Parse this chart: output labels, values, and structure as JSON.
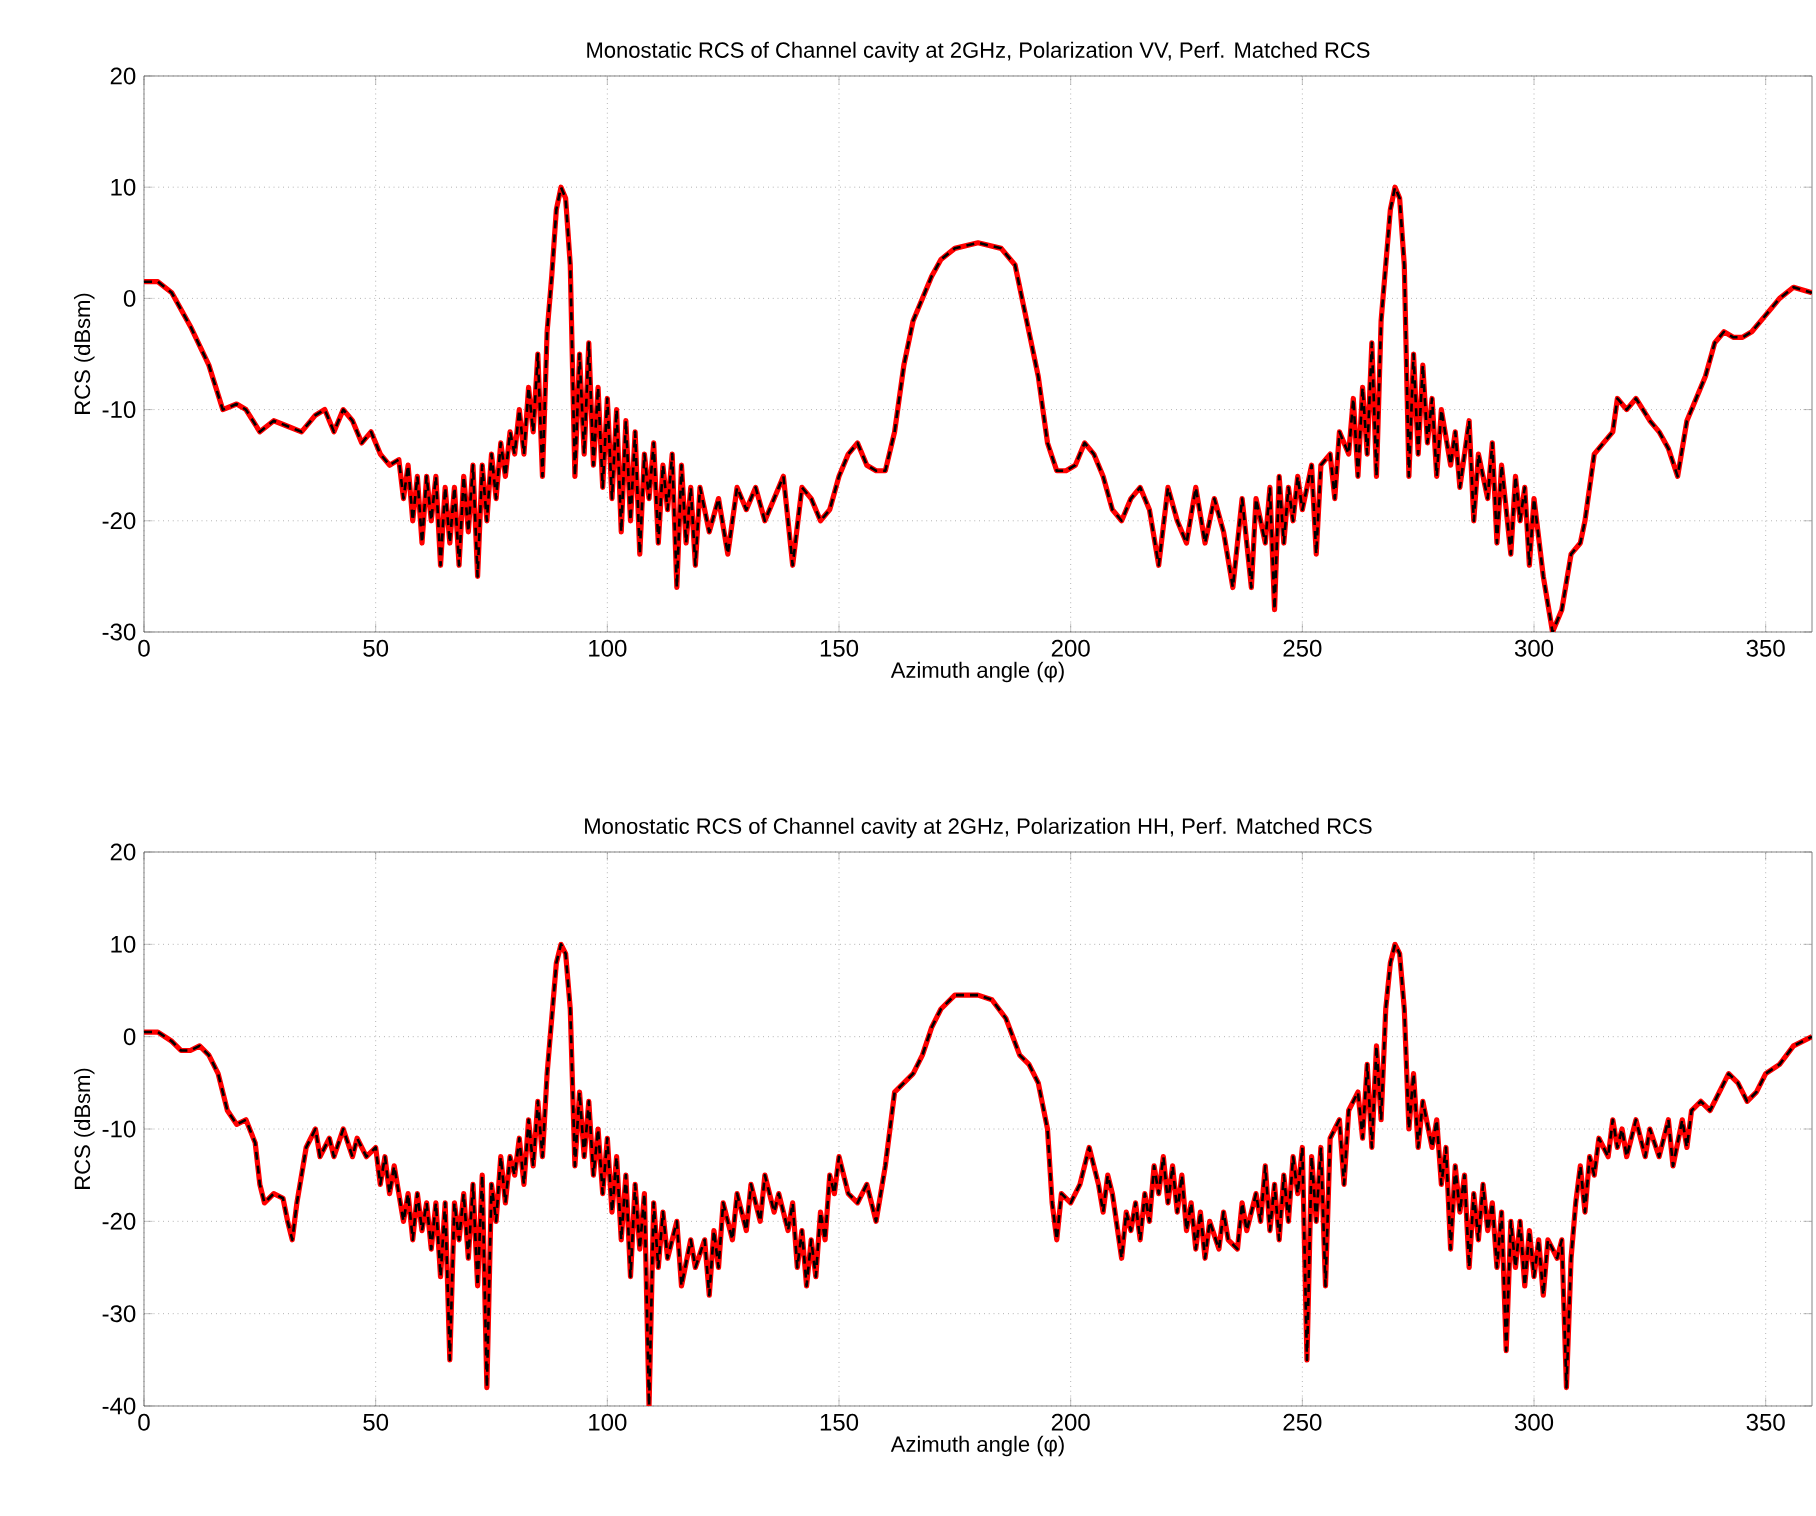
{
  "chart_data": [
    {
      "type": "line",
      "title": "Monostatic RCS of Channel cavity at 2GHz, Polarization VV, Perf. Matched RCS",
      "xlabel": "Azimuth angle (φ)",
      "ylabel": "RCS (dBsm)",
      "xlim": [
        0,
        360
      ],
      "ylim": [
        -30,
        20
      ],
      "xticks": [
        0,
        50,
        100,
        150,
        200,
        250,
        300,
        350
      ],
      "yticks": [
        -30,
        -20,
        -10,
        0,
        10,
        20
      ],
      "grid": true,
      "x": [
        0,
        3,
        6,
        10,
        14,
        17,
        20,
        22,
        25,
        28,
        31,
        34,
        37,
        39,
        41,
        43,
        45,
        47,
        49,
        51,
        53,
        55,
        56,
        57,
        58,
        59,
        60,
        61,
        62,
        63,
        64,
        65,
        66,
        67,
        68,
        69,
        70,
        71,
        72,
        73,
        74,
        75,
        76,
        77,
        78,
        79,
        80,
        81,
        82,
        83,
        84,
        85,
        86,
        87,
        88,
        89,
        90,
        91,
        92,
        93,
        94,
        95,
        96,
        97,
        98,
        99,
        100,
        101,
        102,
        103,
        104,
        105,
        106,
        107,
        108,
        109,
        110,
        111,
        112,
        113,
        114,
        115,
        116,
        117,
        118,
        119,
        120,
        122,
        124,
        126,
        128,
        130,
        132,
        134,
        136,
        138,
        140,
        142,
        144,
        146,
        148,
        150,
        152,
        154,
        156,
        158,
        160,
        162,
        164,
        166,
        168,
        170,
        172,
        175,
        180,
        185,
        188,
        190,
        193,
        195,
        197,
        199,
        201,
        203,
        205,
        207,
        209,
        211,
        213,
        215,
        217,
        219,
        221,
        223,
        225,
        227,
        229,
        231,
        233,
        235,
        237,
        239,
        240,
        242,
        243,
        244,
        245,
        246,
        247,
        248,
        249,
        250,
        252,
        253,
        254,
        256,
        257,
        258,
        260,
        261,
        262,
        263,
        264,
        265,
        266,
        267,
        268,
        269,
        270,
        271,
        272,
        273,
        274,
        275,
        276,
        277,
        278,
        279,
        280,
        282,
        283,
        284,
        286,
        287,
        288,
        290,
        291,
        292,
        293,
        295,
        296,
        297,
        298,
        299,
        300,
        302,
        304,
        306,
        308,
        310,
        311,
        313,
        315,
        317,
        318,
        320,
        322,
        325,
        327,
        329,
        331,
        333,
        335,
        337,
        339,
        341,
        343,
        345,
        347,
        350,
        353,
        356,
        360
      ],
      "series": [
        {
          "color": "#ff0000",
          "line_style": "solid",
          "values": [
            1.5,
            1.5,
            0.5,
            -2.5,
            -6,
            -10,
            -9.5,
            -10,
            -12,
            -11,
            -11.5,
            -12,
            -10.5,
            -10,
            -12,
            -10,
            -11,
            -13,
            -12,
            -14,
            -15,
            -14.5,
            -18,
            -15,
            -20,
            -16,
            -22,
            -16,
            -20,
            -16,
            -24,
            -17,
            -22,
            -17,
            -24,
            -16,
            -21,
            -15,
            -25,
            -15,
            -20,
            -14,
            -18,
            -13,
            -16,
            -12,
            -14,
            -10,
            -14,
            -8,
            -12,
            -5,
            -16,
            -3,
            2,
            8,
            10,
            9,
            3,
            -16,
            -5,
            -14,
            -4,
            -15,
            -8,
            -17,
            -9,
            -18,
            -10,
            -21,
            -11,
            -20,
            -12,
            -23,
            -14,
            -18,
            -13,
            -22,
            -15,
            -19,
            -14,
            -26,
            -15,
            -22,
            -17,
            -24,
            -17,
            -21,
            -18,
            -23,
            -17,
            -19,
            -17,
            -20,
            -18,
            -16,
            -24,
            -17,
            -18,
            -20,
            -19,
            -16,
            -14,
            -13,
            -15,
            -15.5,
            -15.5,
            -12,
            -6,
            -2,
            0,
            2,
            3.5,
            4.5,
            5,
            4.5,
            3,
            -1,
            -7,
            -13,
            -15.5,
            -15.5,
            -15,
            -13,
            -14,
            -16,
            -19,
            -20,
            -18,
            -17,
            -19,
            -24,
            -17,
            -20,
            -22,
            -17,
            -22,
            -18,
            -21,
            -26,
            -18,
            -26,
            -18,
            -22,
            -17,
            -28,
            -16,
            -22,
            -17,
            -20,
            -16,
            -19,
            -15,
            -23,
            -15,
            -14,
            -18,
            -12,
            -14,
            -9,
            -16,
            -8,
            -14,
            -4,
            -16,
            -2,
            3,
            8,
            10,
            9,
            3,
            -16,
            -5,
            -14,
            -6,
            -13,
            -9,
            -16,
            -10,
            -15,
            -12,
            -17,
            -11,
            -20,
            -14,
            -18,
            -13,
            -22,
            -15,
            -23,
            -16,
            -20,
            -17,
            -24,
            -18,
            -25,
            -30,
            -28,
            -23,
            -22,
            -20,
            -14,
            -13,
            -12,
            -9,
            -10,
            -9,
            -11,
            -12,
            -13.5,
            -16,
            -11,
            -9,
            -7,
            -4,
            -3,
            -3.5,
            -3.5,
            -3,
            -1.5,
            0,
            1,
            0.5
          ]
        },
        {
          "color": "#000000",
          "line_style": "dashed",
          "values": [
            1.5,
            1.5,
            0.5,
            -2.5,
            -6,
            -10,
            -9.5,
            -10,
            -12,
            -11,
            -11.5,
            -12,
            -10.5,
            -10,
            -12,
            -10,
            -11,
            -13,
            -12,
            -14,
            -15,
            -14.5,
            -18,
            -15,
            -20,
            -16,
            -22,
            -16,
            -20,
            -16,
            -24,
            -17,
            -22,
            -17,
            -24,
            -16,
            -21,
            -15,
            -25,
            -15,
            -20,
            -14,
            -18,
            -13,
            -16,
            -12,
            -14,
            -10,
            -14,
            -8,
            -12,
            -5,
            -16,
            -3,
            2,
            8,
            10,
            9,
            3,
            -16,
            -5,
            -14,
            -4,
            -15,
            -8,
            -17,
            -9,
            -18,
            -10,
            -21,
            -11,
            -20,
            -12,
            -23,
            -14,
            -18,
            -13,
            -22,
            -15,
            -19,
            -14,
            -26,
            -15,
            -22,
            -17,
            -24,
            -17,
            -21,
            -18,
            -23,
            -17,
            -19,
            -17,
            -20,
            -18,
            -16,
            -24,
            -17,
            -18,
            -20,
            -19,
            -16,
            -14,
            -13,
            -15,
            -15.5,
            -15.5,
            -12,
            -6,
            -2,
            0,
            2,
            3.5,
            4.5,
            5,
            4.5,
            3,
            -1,
            -7,
            -13,
            -15.5,
            -15.5,
            -15,
            -13,
            -14,
            -16,
            -19,
            -20,
            -18,
            -17,
            -19,
            -24,
            -17,
            -20,
            -22,
            -17,
            -22,
            -18,
            -21,
            -26,
            -18,
            -26,
            -18,
            -22,
            -17,
            -28,
            -16,
            -22,
            -17,
            -20,
            -16,
            -19,
            -15,
            -23,
            -15,
            -14,
            -18,
            -12,
            -14,
            -9,
            -16,
            -8,
            -14,
            -4,
            -16,
            -2,
            3,
            8,
            10,
            9,
            3,
            -16,
            -5,
            -14,
            -6,
            -13,
            -9,
            -16,
            -10,
            -15,
            -12,
            -17,
            -11,
            -20,
            -14,
            -18,
            -13,
            -22,
            -15,
            -23,
            -16,
            -20,
            -17,
            -24,
            -18,
            -25,
            -30,
            -28,
            -23,
            -22,
            -20,
            -14,
            -13,
            -12,
            -9,
            -10,
            -9,
            -11,
            -12,
            -13.5,
            -16,
            -11,
            -9,
            -7,
            -4,
            -3,
            -3.5,
            -3.5,
            -3,
            -1.5,
            0,
            1,
            0.5
          ]
        }
      ]
    },
    {
      "type": "line",
      "title": "Monostatic RCS of Channel cavity at 2GHz, Polarization HH, Perf. Matched RCS",
      "xlabel": "Azimuth angle (φ)",
      "ylabel": "RCS (dBsm)",
      "xlim": [
        0,
        360
      ],
      "ylim": [
        -40,
        20
      ],
      "xticks": [
        0,
        50,
        100,
        150,
        200,
        250,
        300,
        350
      ],
      "yticks": [
        -40,
        -30,
        -20,
        -10,
        0,
        10,
        20
      ],
      "grid": true,
      "x": [
        0,
        3,
        6,
        8,
        10,
        12,
        14,
        16,
        18,
        20,
        22,
        24,
        25,
        26,
        28,
        30,
        31,
        32,
        33,
        35,
        37,
        38,
        40,
        41,
        43,
        45,
        46,
        48,
        50,
        51,
        52,
        53,
        54,
        56,
        57,
        58,
        59,
        60,
        61,
        62,
        63,
        64,
        65,
        66,
        67,
        68,
        69,
        70,
        71,
        72,
        73,
        74,
        75,
        76,
        77,
        78,
        79,
        80,
        81,
        82,
        83,
        84,
        85,
        86,
        87,
        88,
        89,
        90,
        91,
        92,
        93,
        94,
        95,
        96,
        97,
        98,
        99,
        100,
        101,
        102,
        103,
        104,
        105,
        106,
        107,
        108,
        109,
        110,
        111,
        112,
        113,
        115,
        116,
        118,
        119,
        121,
        122,
        123,
        124,
        125,
        127,
        128,
        130,
        131,
        133,
        134,
        136,
        137,
        139,
        140,
        141,
        142,
        143,
        144,
        145,
        146,
        147,
        148,
        149,
        150,
        152,
        154,
        156,
        158,
        160,
        162,
        164,
        166,
        168,
        170,
        172,
        175,
        180,
        183,
        186,
        189,
        191,
        193,
        195,
        196,
        197,
        198,
        200,
        202,
        203,
        204,
        206,
        207,
        208,
        209,
        211,
        212,
        213,
        214,
        215,
        216,
        217,
        218,
        219,
        220,
        221,
        222,
        223,
        224,
        225,
        226,
        227,
        228,
        229,
        230,
        232,
        233,
        234,
        236,
        237,
        238,
        240,
        241,
        242,
        243,
        244,
        245,
        246,
        247,
        248,
        249,
        250,
        251,
        252,
        253,
        254,
        255,
        256,
        258,
        259,
        260,
        262,
        263,
        264,
        265,
        266,
        267,
        268,
        269,
        270,
        271,
        272,
        273,
        274,
        275,
        276,
        278,
        279,
        280,
        281,
        282,
        283,
        284,
        285,
        286,
        287,
        288,
        289,
        290,
        291,
        292,
        293,
        294,
        295,
        296,
        297,
        298,
        299,
        300,
        301,
        302,
        303,
        305,
        306,
        307,
        308,
        309,
        310,
        311,
        312,
        313,
        314,
        316,
        317,
        318,
        319,
        320,
        322,
        324,
        325,
        327,
        329,
        330,
        332,
        333,
        334,
        336,
        338,
        340,
        342,
        344,
        346,
        348,
        350,
        353,
        356,
        360
      ],
      "series": [
        {
          "color": "#ff0000",
          "line_style": "solid",
          "values": [
            0.5,
            0.5,
            -0.5,
            -1.5,
            -1.5,
            -1,
            -2,
            -4,
            -8,
            -9.5,
            -9,
            -11.5,
            -16,
            -18,
            -17,
            -17.5,
            -20,
            -22,
            -18,
            -12,
            -10,
            -13,
            -11,
            -13,
            -10,
            -13,
            -11,
            -13,
            -12,
            -16,
            -13,
            -17,
            -14,
            -20,
            -17,
            -22,
            -17,
            -21,
            -18,
            -23,
            -18,
            -26,
            -18,
            -35,
            -18,
            -22,
            -17,
            -24,
            -16,
            -27,
            -15,
            -38,
            -16,
            -20,
            -13,
            -18,
            -13,
            -15,
            -11,
            -16,
            -9,
            -14,
            -7,
            -13,
            -4,
            2,
            8,
            10,
            9,
            3,
            -14,
            -6,
            -13,
            -7,
            -15,
            -10,
            -17,
            -11,
            -19,
            -13,
            -22,
            -15,
            -26,
            -16,
            -23,
            -17,
            -40,
            -18,
            -25,
            -19,
            -24,
            -20,
            -27,
            -22,
            -25,
            -22,
            -28,
            -21,
            -25,
            -18,
            -22,
            -17,
            -21,
            -16,
            -20,
            -15,
            -19,
            -17,
            -21,
            -18,
            -25,
            -21,
            -27,
            -22,
            -26,
            -19,
            -22,
            -15,
            -17,
            -13,
            -17,
            -18,
            -16,
            -20,
            -14,
            -6,
            -5,
            -4,
            -2,
            1,
            3,
            4.5,
            4.5,
            4,
            2,
            -2,
            -3,
            -5,
            -10,
            -18,
            -22,
            -17,
            -18,
            -16,
            -14,
            -12,
            -16,
            -19,
            -15,
            -17,
            -24,
            -19,
            -21,
            -18,
            -22,
            -17,
            -20,
            -14,
            -17,
            -13,
            -18,
            -14,
            -19,
            -15,
            -21,
            -18,
            -23,
            -19,
            -24,
            -20,
            -23,
            -19,
            -22,
            -23,
            -18,
            -21,
            -17,
            -20,
            -14,
            -21,
            -16,
            -22,
            -15,
            -20,
            -13,
            -17,
            -12,
            -35,
            -13,
            -20,
            -12,
            -27,
            -11,
            -9,
            -16,
            -8,
            -6,
            -11,
            -3,
            -12,
            -1,
            -9,
            3,
            8,
            10,
            9,
            3,
            -10,
            -4,
            -12,
            -7,
            -12,
            -9,
            -16,
            -12,
            -23,
            -14,
            -19,
            -15,
            -25,
            -17,
            -22,
            -16,
            -21,
            -18,
            -25,
            -19,
            -34,
            -20,
            -25,
            -20,
            -27,
            -21,
            -26,
            -22,
            -28,
            -22,
            -24,
            -22,
            -38,
            -24,
            -18,
            -14,
            -19,
            -13,
            -15,
            -11,
            -13,
            -9,
            -12,
            -10,
            -13,
            -9,
            -13,
            -10,
            -13,
            -9,
            -14,
            -9,
            -12,
            -8,
            -7,
            -8,
            -6,
            -4,
            -5,
            -7,
            -6,
            -4,
            -3,
            -1,
            0
          ]
        },
        {
          "color": "#000000",
          "line_style": "dashed",
          "values": [
            0.5,
            0.5,
            -0.5,
            -1.5,
            -1.5,
            -1,
            -2,
            -4,
            -8,
            -9.5,
            -9,
            -11.5,
            -16,
            -18,
            -17,
            -17.5,
            -20,
            -22,
            -18,
            -12,
            -10,
            -13,
            -11,
            -13,
            -10,
            -13,
            -11,
            -13,
            -12,
            -16,
            -13,
            -17,
            -14,
            -20,
            -17,
            -22,
            -17,
            -21,
            -18,
            -23,
            -18,
            -26,
            -18,
            -35,
            -18,
            -22,
            -17,
            -24,
            -16,
            -27,
            -15,
            -38,
            -16,
            -20,
            -13,
            -18,
            -13,
            -15,
            -11,
            -16,
            -9,
            -14,
            -7,
            -13,
            -4,
            2,
            8,
            10,
            9,
            3,
            -14,
            -6,
            -13,
            -7,
            -15,
            -10,
            -17,
            -11,
            -19,
            -13,
            -22,
            -15,
            -26,
            -16,
            -23,
            -17,
            -40,
            -18,
            -25,
            -19,
            -24,
            -20,
            -27,
            -22,
            -25,
            -22,
            -28,
            -21,
            -25,
            -18,
            -22,
            -17,
            -21,
            -16,
            -20,
            -15,
            -19,
            -17,
            -21,
            -18,
            -25,
            -21,
            -27,
            -22,
            -26,
            -19,
            -22,
            -15,
            -17,
            -13,
            -17,
            -18,
            -16,
            -20,
            -14,
            -6,
            -5,
            -4,
            -2,
            1,
            3,
            4.5,
            4.5,
            4,
            2,
            -2,
            -3,
            -5,
            -10,
            -18,
            -22,
            -17,
            -18,
            -16,
            -14,
            -12,
            -16,
            -19,
            -15,
            -17,
            -24,
            -19,
            -21,
            -18,
            -22,
            -17,
            -20,
            -14,
            -17,
            -13,
            -18,
            -14,
            -19,
            -15,
            -21,
            -18,
            -23,
            -19,
            -24,
            -20,
            -23,
            -19,
            -22,
            -23,
            -18,
            -21,
            -17,
            -20,
            -14,
            -21,
            -16,
            -22,
            -15,
            -20,
            -13,
            -17,
            -12,
            -35,
            -13,
            -20,
            -12,
            -27,
            -11,
            -9,
            -16,
            -8,
            -6,
            -11,
            -3,
            -12,
            -1,
            -9,
            3,
            8,
            10,
            9,
            3,
            -10,
            -4,
            -12,
            -7,
            -12,
            -9,
            -16,
            -12,
            -23,
            -14,
            -19,
            -15,
            -25,
            -17,
            -22,
            -16,
            -21,
            -18,
            -25,
            -19,
            -34,
            -20,
            -25,
            -20,
            -27,
            -21,
            -26,
            -22,
            -28,
            -22,
            -24,
            -22,
            -38,
            -24,
            -18,
            -14,
            -19,
            -13,
            -15,
            -11,
            -13,
            -9,
            -12,
            -10,
            -13,
            -9,
            -13,
            -10,
            -13,
            -9,
            -14,
            -9,
            -12,
            -8,
            -7,
            -8,
            -6,
            -4,
            -5,
            -7,
            -6,
            -4,
            -3,
            -1,
            0
          ]
        }
      ]
    }
  ]
}
